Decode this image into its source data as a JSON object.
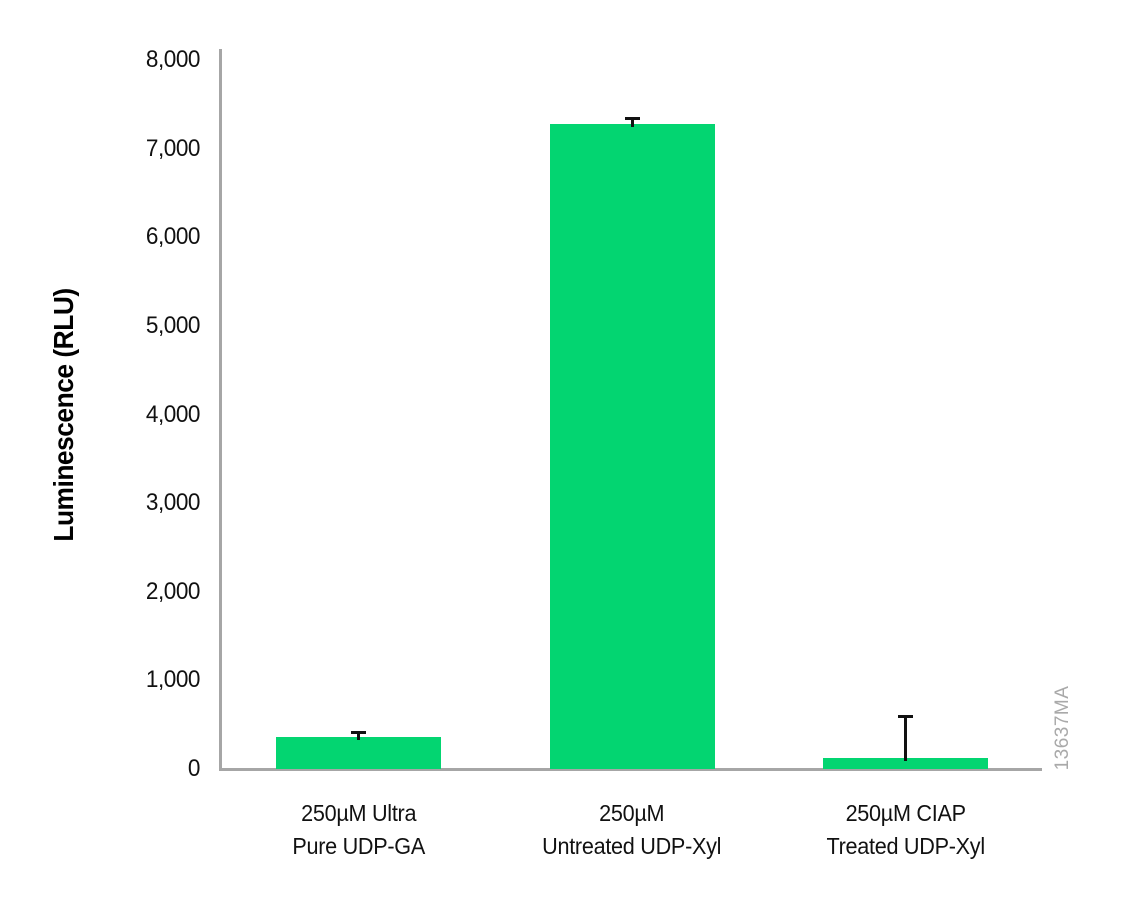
{
  "chart_data": {
    "type": "bar",
    "title": "",
    "xlabel": "",
    "ylabel": "Luminescence (RLU)",
    "ylim": [
      0,
      8000
    ],
    "ytick_interval": 1000,
    "yticks": [
      {
        "value": 0,
        "label": "0"
      },
      {
        "value": 1000,
        "label": "1,000"
      },
      {
        "value": 2000,
        "label": "2,000"
      },
      {
        "value": 3000,
        "label": "3,000"
      },
      {
        "value": 4000,
        "label": "4,000"
      },
      {
        "value": 5000,
        "label": "5,000"
      },
      {
        "value": 6000,
        "label": "6,000"
      },
      {
        "value": 7000,
        "label": "7,000"
      },
      {
        "value": 8000,
        "label": "8,000"
      }
    ],
    "categories": [
      [
        "250µM Ultra",
        "Pure UDP-GA"
      ],
      [
        "250µM",
        "Untreated UDP-Xyl"
      ],
      [
        "250µM CIAP",
        "Treated UDP-Xyl"
      ]
    ],
    "values": [
      360,
      7280,
      125
    ],
    "errors_plus": [
      65,
      80,
      480
    ],
    "grid": false,
    "legend": false,
    "bar_color": "#03d571",
    "axis_color": "#a6a6a6",
    "error_bar_color": "#111111",
    "watermark": "13637MA",
    "watermark_color": "#a9a9a9"
  }
}
